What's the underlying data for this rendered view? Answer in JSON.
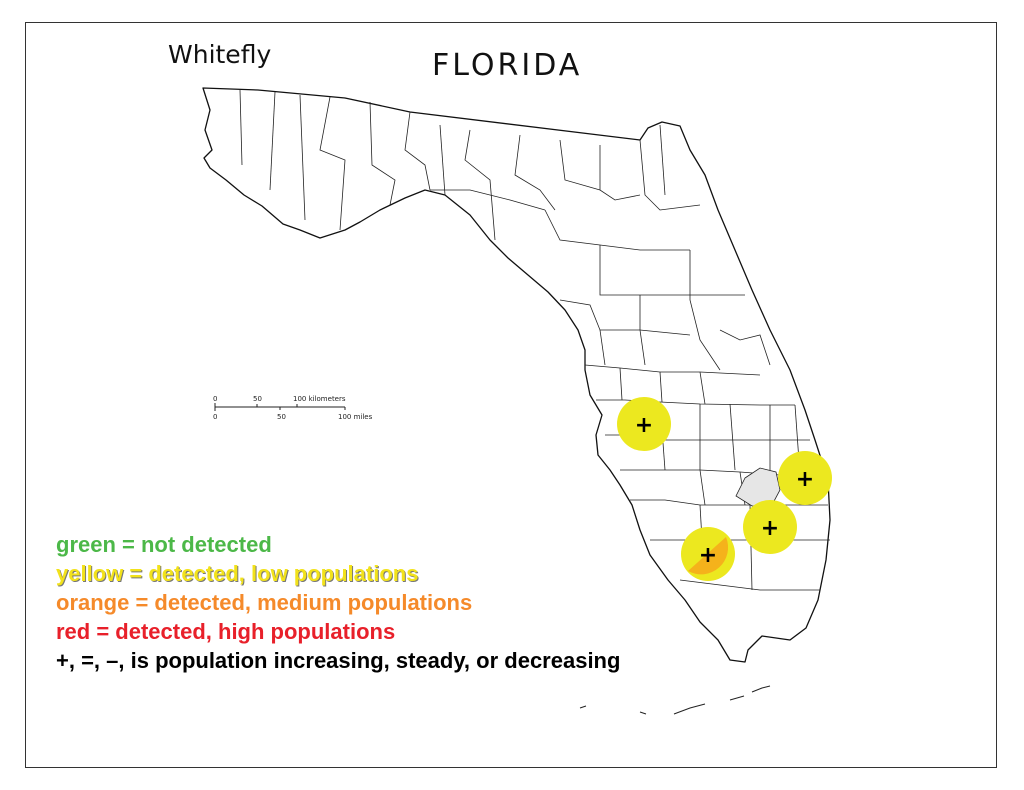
{
  "header": {
    "subtitle": "Whitefly",
    "title": "FLORIDA"
  },
  "scale_bar": {
    "km_ticks": [
      "0",
      "50",
      "100 kilometers"
    ],
    "mile_ticks": [
      "0",
      "50",
      "100 miles"
    ]
  },
  "legend": {
    "items": [
      {
        "text": "green = not detected",
        "color": "#4cb848"
      },
      {
        "text": "yellow = detected, low populations",
        "color": "#f2e21b"
      },
      {
        "text": "orange = detected, medium populations",
        "color": "#f58a2a"
      },
      {
        "text": "red = detected, high populations",
        "color": "#e8202a"
      },
      {
        "text": "+, =, –, is population increasing, steady, or decreasing",
        "color": "#000000"
      }
    ]
  },
  "markers": [
    {
      "id": "hillsborough",
      "level": "yellow",
      "trend": "+"
    },
    {
      "id": "palm-beach",
      "level": "yellow",
      "trend": "+"
    },
    {
      "id": "broward-west",
      "level": "yellow",
      "trend": "+"
    },
    {
      "id": "collier",
      "level": "yellow/orange",
      "trend": "+"
    }
  ],
  "colors": {
    "yellow": "#ece81f",
    "orange": "#f5b21b",
    "lake": "#e6e6e6"
  }
}
